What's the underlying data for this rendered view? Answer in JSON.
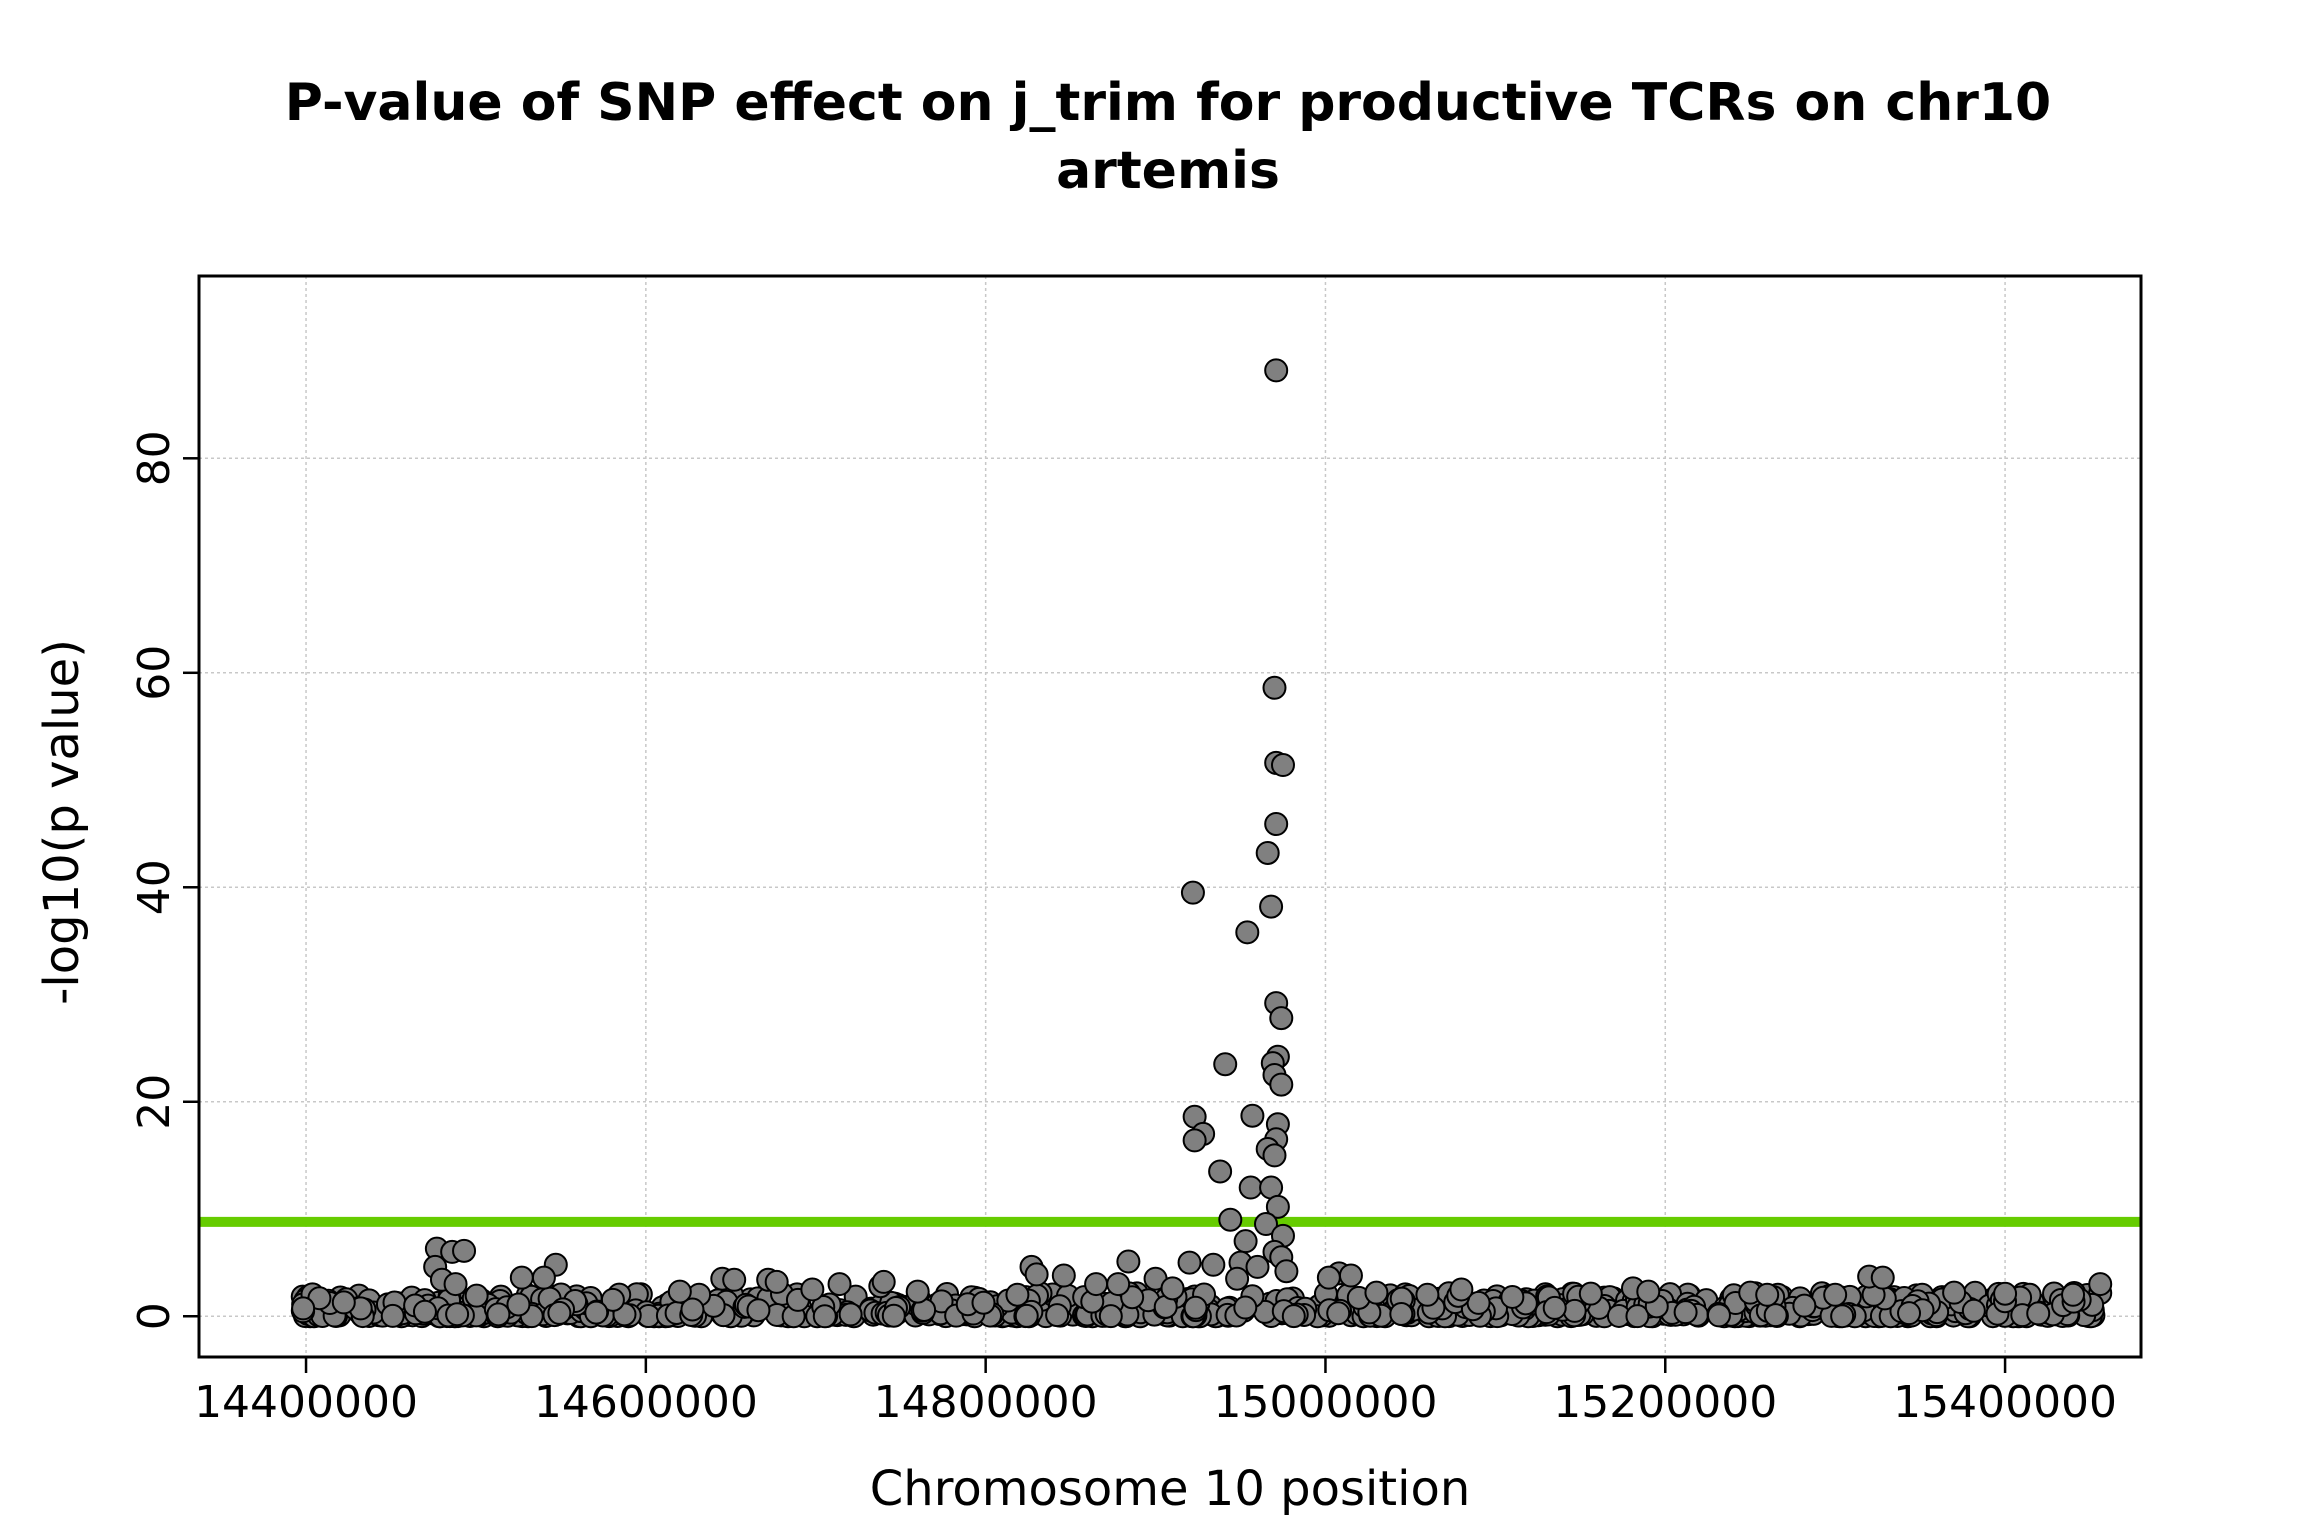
{
  "chart_data": {
    "type": "scatter",
    "title": "P-value of SNP effect on j_trim for productive TCRs on chr10",
    "subtitle": "artemis",
    "xlabel": "Chromosome 10 position",
    "ylabel": "-log10(p value)",
    "xlim": [
      14337000,
      15480000
    ],
    "ylim": [
      -3.8,
      97
    ],
    "x_ticks": [
      14400000,
      14600000,
      14800000,
      15000000,
      15200000,
      15400000
    ],
    "x_tick_labels": [
      "14400000",
      "14600000",
      "14800000",
      "15000000",
      "15200000",
      "15400000"
    ],
    "y_ticks": [
      0,
      20,
      40,
      60,
      80
    ],
    "y_tick_labels": [
      "0",
      "20",
      "40",
      "60",
      "80"
    ],
    "grid": true,
    "threshold": {
      "y": 8.8,
      "color": "#66cc00"
    },
    "point_fill": "#808080",
    "point_stroke": "#000000",
    "points": [
      [
        14971000,
        88.2
      ],
      [
        14970000,
        58.6
      ],
      [
        14971000,
        51.6
      ],
      [
        14975000,
        51.4
      ],
      [
        14971000,
        45.9
      ],
      [
        14966000,
        43.2
      ],
      [
        14968000,
        38.2
      ],
      [
        14922000,
        39.5
      ],
      [
        14954000,
        35.8
      ],
      [
        14971000,
        29.2
      ],
      [
        14974000,
        27.8
      ],
      [
        14972000,
        24.2
      ],
      [
        14969000,
        23.6
      ],
      [
        14970000,
        22.5
      ],
      [
        14974000,
        21.6
      ],
      [
        14941000,
        23.5
      ],
      [
        14923000,
        18.6
      ],
      [
        14957000,
        18.7
      ],
      [
        14972000,
        17.9
      ],
      [
        14928000,
        17.0
      ],
      [
        14923000,
        16.4
      ],
      [
        14971000,
        16.5
      ],
      [
        14966000,
        15.6
      ],
      [
        14970000,
        15.0
      ],
      [
        14938000,
        13.5
      ],
      [
        14956000,
        12.0
      ],
      [
        14968000,
        12.0
      ],
      [
        14972000,
        10.2
      ],
      [
        14944000,
        9.0
      ],
      [
        14965000,
        8.6
      ],
      [
        14975000,
        7.5
      ],
      [
        14953000,
        7.0
      ],
      [
        14970000,
        6.0
      ],
      [
        14974000,
        5.5
      ],
      [
        14950000,
        5.0
      ],
      [
        14960000,
        4.6
      ],
      [
        14934000,
        4.8
      ],
      [
        14920000,
        5.0
      ],
      [
        14977000,
        4.2
      ],
      [
        14948000,
        3.5
      ],
      [
        14477000,
        6.3
      ],
      [
        14486000,
        6.0
      ],
      [
        14493000,
        6.1
      ],
      [
        14476000,
        4.6
      ],
      [
        14480000,
        3.4
      ],
      [
        14488000,
        3.0
      ],
      [
        14547000,
        4.8
      ],
      [
        14540000,
        3.6
      ],
      [
        14527000,
        3.6
      ],
      [
        14620000,
        2.3
      ],
      [
        14645000,
        3.5
      ],
      [
        14652000,
        3.4
      ],
      [
        14672000,
        3.4
      ],
      [
        14677000,
        3.2
      ],
      [
        14698000,
        2.5
      ],
      [
        14714000,
        3.0
      ],
      [
        14738000,
        2.8
      ],
      [
        14740000,
        3.2
      ],
      [
        14760000,
        2.3
      ],
      [
        14827000,
        4.6
      ],
      [
        14830000,
        3.9
      ],
      [
        14846000,
        3.8
      ],
      [
        14865000,
        3.0
      ],
      [
        14884000,
        5.1
      ],
      [
        14878000,
        3.0
      ],
      [
        14900000,
        3.5
      ],
      [
        14910000,
        2.6
      ],
      [
        15008000,
        4.0
      ],
      [
        15015000,
        3.8
      ],
      [
        15002000,
        3.6
      ],
      [
        15030000,
        2.2
      ],
      [
        15060000,
        2.0
      ],
      [
        15080000,
        2.5
      ],
      [
        15110000,
        1.8
      ],
      [
        15181000,
        2.6
      ],
      [
        15190000,
        2.3
      ],
      [
        15250000,
        2.2
      ],
      [
        15260000,
        2.0
      ],
      [
        15320000,
        3.7
      ],
      [
        15328000,
        3.6
      ],
      [
        15300000,
        2.0
      ],
      [
        15370000,
        2.2
      ],
      [
        15400000,
        2.1
      ],
      [
        15440000,
        2.0
      ],
      [
        15456000,
        3.0
      ]
    ],
    "baseline_cloud": {
      "x_range": [
        14398000,
        15456000
      ],
      "y_range": [
        0,
        2.2
      ],
      "count": 900
    }
  }
}
